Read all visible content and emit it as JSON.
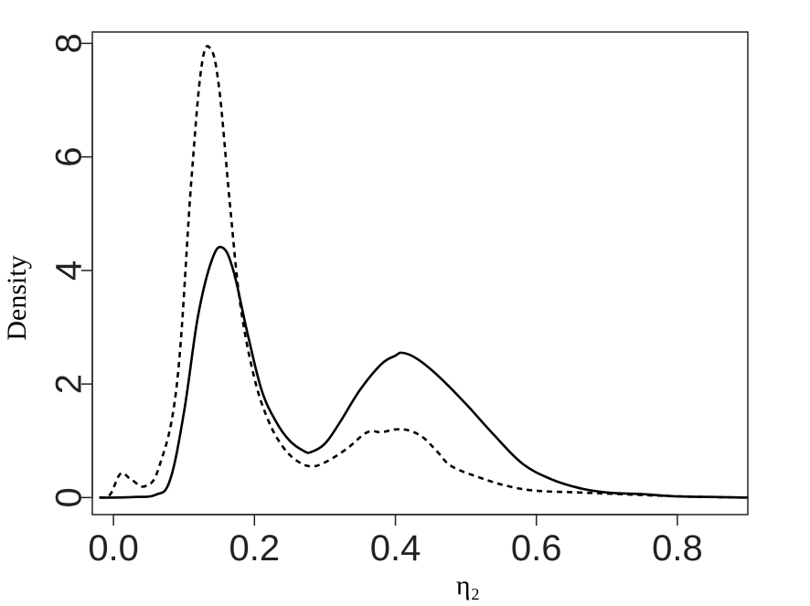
{
  "chart_data": {
    "type": "line",
    "title": "",
    "xlabel": "η₂",
    "ylabel": "Density",
    "xlim": [
      -0.03,
      0.9
    ],
    "ylim": [
      -0.3,
      8.2
    ],
    "xticks": [
      "0.0",
      "0.2",
      "0.4",
      "0.6",
      "0.8"
    ],
    "xtick_values": [
      0.0,
      0.2,
      0.4,
      0.6,
      0.8
    ],
    "yticks": [
      "0",
      "2",
      "4",
      "6",
      "8"
    ],
    "ytick_values": [
      0,
      2,
      4,
      6,
      8
    ],
    "grid": false,
    "legend": null,
    "series": [
      {
        "style": "solid",
        "color": "#000000",
        "x": [
          -0.02,
          0.0,
          0.03,
          0.06,
          0.08,
          0.1,
          0.12,
          0.14,
          0.155,
          0.17,
          0.19,
          0.21,
          0.23,
          0.25,
          0.27,
          0.28,
          0.3,
          0.32,
          0.35,
          0.38,
          0.4,
          0.41,
          0.43,
          0.46,
          0.5,
          0.54,
          0.58,
          0.62,
          0.66,
          0.7,
          0.75,
          0.8,
          0.85,
          0.9
        ],
        "y": [
          0.0,
          0.0,
          0.01,
          0.05,
          0.3,
          1.5,
          3.2,
          4.2,
          4.4,
          4.0,
          2.9,
          1.9,
          1.35,
          1.0,
          0.82,
          0.8,
          0.95,
          1.3,
          1.9,
          2.35,
          2.5,
          2.55,
          2.45,
          2.15,
          1.65,
          1.1,
          0.6,
          0.33,
          0.17,
          0.09,
          0.06,
          0.02,
          0.01,
          0.0
        ]
      },
      {
        "style": "dashed",
        "color": "#000000",
        "x": [
          -0.02,
          -0.005,
          0.01,
          0.025,
          0.045,
          0.065,
          0.09,
          0.11,
          0.125,
          0.138,
          0.15,
          0.165,
          0.18,
          0.2,
          0.22,
          0.24,
          0.26,
          0.28,
          0.3,
          0.33,
          0.36,
          0.38,
          0.4,
          0.42,
          0.44,
          0.46,
          0.48,
          0.52,
          0.56,
          0.6,
          0.66,
          0.72,
          0.78,
          0.84,
          0.9
        ],
        "y": [
          0.0,
          0.05,
          0.42,
          0.32,
          0.2,
          0.55,
          2.0,
          5.5,
          7.6,
          7.9,
          7.2,
          5.2,
          3.4,
          2.1,
          1.35,
          0.9,
          0.65,
          0.55,
          0.62,
          0.85,
          1.15,
          1.15,
          1.2,
          1.18,
          1.05,
          0.8,
          0.55,
          0.35,
          0.2,
          0.12,
          0.09,
          0.06,
          0.03,
          0.01,
          0.0
        ]
      }
    ]
  }
}
